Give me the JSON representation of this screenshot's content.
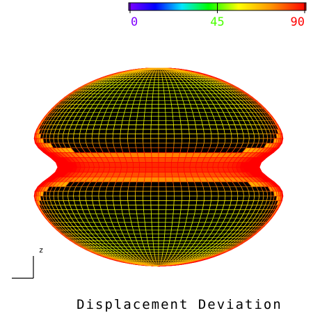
{
  "colorbar": {
    "range": [
      0,
      90
    ],
    "ticks": [
      0,
      45,
      90
    ]
  },
  "axis_label": "z",
  "title": "Displacement Deviation"
}
